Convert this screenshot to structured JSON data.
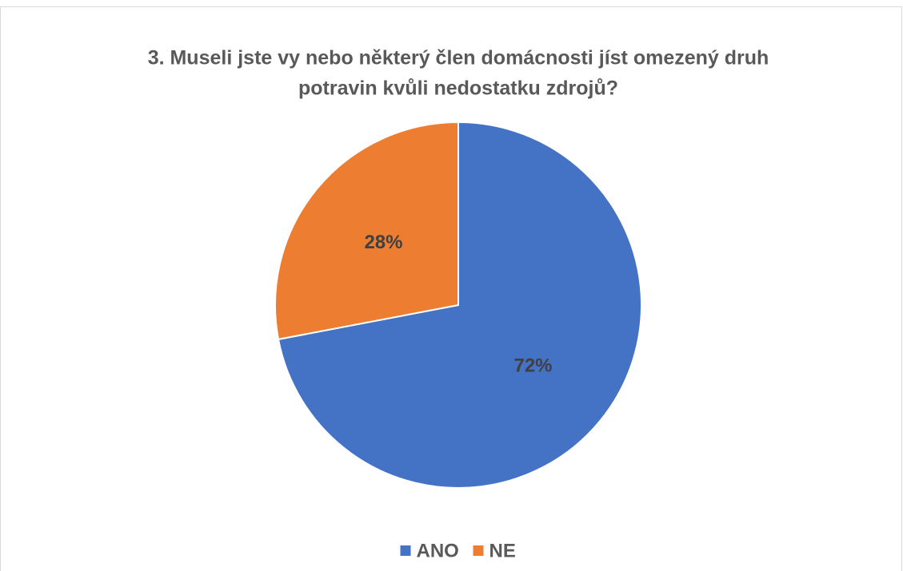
{
  "chart_data": {
    "type": "pie",
    "title": [
      "3. Museli jste vy nebo některý člen domácnosti jíst omezený druh",
      "potravin kvůli nedostatku zdrojů?"
    ],
    "categories": [
      "ANO",
      "NE"
    ],
    "values": [
      72,
      28
    ],
    "value_labels": [
      "72%",
      "28%"
    ],
    "colors": [
      "#4472c4",
      "#ed7d31"
    ],
    "legend": "bottom"
  }
}
